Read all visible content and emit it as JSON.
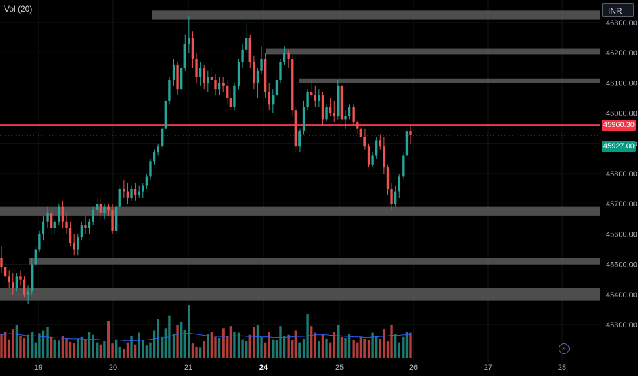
{
  "header": {
    "indicator_label": "Vol (20)"
  },
  "currency": "INR",
  "colors": {
    "up": "#26a69a",
    "down": "#ef5350",
    "zone": "#5a5a5a",
    "level": "#f23645",
    "ma": "#2962ff"
  },
  "price_tags": {
    "level": {
      "label": "45960.30",
      "value": 45960.3
    },
    "last": {
      "label": "45927.00",
      "value": 45927.0
    }
  },
  "goto_icon": "arrow-right-circle-icon",
  "chart_data": {
    "type": "candlestick",
    "y_range": [
      45210,
      46330
    ],
    "y_ticks": [
      "45300.00",
      "45400.00",
      "45500.00",
      "45600.00",
      "45700.00",
      "45800.00",
      "45900.00",
      "46000.00",
      "46100.00",
      "46200.00",
      "46300.00"
    ],
    "x_ticks": [
      {
        "label": "19",
        "bold": false
      },
      {
        "label": "20",
        "bold": false
      },
      {
        "label": "21",
        "bold": false
      },
      {
        "label": "24",
        "bold": true
      },
      {
        "label": "25",
        "bold": false
      },
      {
        "label": "26",
        "bold": false
      },
      {
        "label": "27",
        "bold": false
      },
      {
        "label": "28",
        "bold": false
      }
    ],
    "zones": [
      {
        "from": "20.5",
        "low": 46310,
        "high": 46340
      },
      {
        "from": "21.2",
        "low": 46195,
        "high": 46215
      },
      {
        "from": "24.5",
        "low": 46100,
        "high": 46115
      },
      {
        "from": "start",
        "low": 45660,
        "high": 45690
      },
      {
        "from": "18.9",
        "low": 45500,
        "high": 45520
      },
      {
        "from": "start",
        "low": 45380,
        "high": 45420
      }
    ],
    "horizontal_level": {
      "value": 45960.3,
      "from": "25.0"
    },
    "last_price": 45927.0,
    "candles": [
      [
        45520,
        45560,
        45470,
        45490
      ],
      [
        45490,
        45510,
        45440,
        45460
      ],
      [
        45460,
        45480,
        45420,
        45440
      ],
      [
        45440,
        45470,
        45400,
        45420
      ],
      [
        45420,
        45470,
        45410,
        45460
      ],
      [
        45460,
        45480,
        45430,
        45450
      ],
      [
        45450,
        45460,
        45390,
        45400
      ],
      [
        45400,
        45430,
        45370,
        45410
      ],
      [
        45410,
        45520,
        45400,
        45500
      ],
      [
        45500,
        45560,
        45490,
        45550
      ],
      [
        45550,
        45610,
        45540,
        45600
      ],
      [
        45600,
        45660,
        45580,
        45640
      ],
      [
        45640,
        45690,
        45620,
        45670
      ],
      [
        45670,
        45680,
        45600,
        45620
      ],
      [
        45620,
        45650,
        45600,
        45640
      ],
      [
        45640,
        45700,
        45630,
        45690
      ],
      [
        45690,
        45710,
        45620,
        45640
      ],
      [
        45640,
        45670,
        45600,
        45620
      ],
      [
        45620,
        45640,
        45560,
        45570
      ],
      [
        45570,
        45600,
        45530,
        45550
      ],
      [
        45550,
        45600,
        45530,
        45590
      ],
      [
        45590,
        45640,
        45580,
        45630
      ],
      [
        45630,
        45660,
        45600,
        45620
      ],
      [
        45620,
        45650,
        45600,
        45640
      ],
      [
        45640,
        45690,
        45630,
        45680
      ],
      [
        45680,
        45720,
        45660,
        45700
      ],
      [
        45700,
        45720,
        45650,
        45670
      ],
      [
        45670,
        45700,
        45650,
        45690
      ],
      [
        45690,
        45700,
        45660,
        45680
      ],
      [
        45680,
        45700,
        45600,
        45610
      ],
      [
        45610,
        45700,
        45600,
        45690
      ],
      [
        45690,
        45760,
        45680,
        45750
      ],
      [
        45750,
        45780,
        45720,
        45740
      ],
      [
        45740,
        45770,
        45700,
        45720
      ],
      [
        45720,
        45760,
        45710,
        45750
      ],
      [
        45750,
        45770,
        45710,
        45730
      ],
      [
        45730,
        45760,
        45720,
        45740
      ],
      [
        45740,
        45770,
        45720,
        45760
      ],
      [
        45760,
        45800,
        45750,
        45790
      ],
      [
        45790,
        45850,
        45780,
        45840
      ],
      [
        45840,
        45880,
        45830,
        45870
      ],
      [
        45870,
        45900,
        45860,
        45890
      ],
      [
        45890,
        45960,
        45880,
        45950
      ],
      [
        45950,
        46050,
        45940,
        46040
      ],
      [
        46040,
        46120,
        46030,
        46110
      ],
      [
        46110,
        46180,
        46090,
        46160
      ],
      [
        46160,
        46170,
        46060,
        46080
      ],
      [
        46080,
        46160,
        46070,
        46150
      ],
      [
        46150,
        46260,
        46140,
        46230
      ],
      [
        46230,
        46320,
        46200,
        46250
      ],
      [
        46250,
        46270,
        46150,
        46180
      ],
      [
        46180,
        46200,
        46100,
        46120
      ],
      [
        46120,
        46170,
        46090,
        46150
      ],
      [
        46150,
        46160,
        46080,
        46100
      ],
      [
        46100,
        46140,
        46070,
        46120
      ],
      [
        46120,
        46150,
        46090,
        46110
      ],
      [
        46110,
        46130,
        46060,
        46080
      ],
      [
        46080,
        46120,
        46060,
        46100
      ],
      [
        46100,
        46120,
        46070,
        46090
      ],
      [
        46090,
        46110,
        46030,
        46050
      ],
      [
        46050,
        46080,
        46010,
        46020
      ],
      [
        46020,
        46100,
        46010,
        46090
      ],
      [
        46090,
        46180,
        46080,
        46170
      ],
      [
        46170,
        46230,
        46150,
        46210
      ],
      [
        46210,
        46300,
        46200,
        46250
      ],
      [
        46250,
        46260,
        46150,
        46170
      ],
      [
        46170,
        46190,
        46080,
        46100
      ],
      [
        46100,
        46150,
        46050,
        46140
      ],
      [
        46140,
        46220,
        46130,
        46180
      ],
      [
        46180,
        46200,
        46050,
        46070
      ],
      [
        46070,
        46100,
        46010,
        46030
      ],
      [
        46030,
        46080,
        46000,
        46060
      ],
      [
        46060,
        46120,
        46050,
        46110
      ],
      [
        46110,
        46180,
        46100,
        46170
      ],
      [
        46170,
        46220,
        46160,
        46200
      ],
      [
        46200,
        46210,
        46150,
        46180
      ],
      [
        46180,
        46190,
        45990,
        46010
      ],
      [
        46010,
        46020,
        45870,
        45890
      ],
      [
        45890,
        45950,
        45870,
        45940
      ],
      [
        45940,
        46040,
        45930,
        46020
      ],
      [
        46020,
        46080,
        46010,
        46070
      ],
      [
        46070,
        46110,
        46050,
        46060
      ],
      [
        46060,
        46090,
        46020,
        46040
      ],
      [
        46040,
        46080,
        46020,
        46060
      ],
      [
        46060,
        46070,
        45960,
        45980
      ],
      [
        45980,
        46030,
        45970,
        46020
      ],
      [
        46020,
        46050,
        45990,
        46000
      ],
      [
        46000,
        46040,
        45970,
        45990
      ],
      [
        45990,
        46110,
        45980,
        46090
      ],
      [
        46090,
        46100,
        45960,
        45980
      ],
      [
        45980,
        46010,
        45950,
        45990
      ],
      [
        45990,
        46030,
        45980,
        46020
      ],
      [
        46020,
        46030,
        45960,
        45970
      ],
      [
        45970,
        45980,
        45930,
        45950
      ],
      [
        45950,
        45970,
        45910,
        45920
      ],
      [
        45920,
        45950,
        45880,
        45890
      ],
      [
        45890,
        45900,
        45820,
        45830
      ],
      [
        45830,
        45870,
        45820,
        45860
      ],
      [
        45860,
        45920,
        45850,
        45910
      ],
      [
        45910,
        45930,
        45880,
        45890
      ],
      [
        45890,
        45920,
        45800,
        45820
      ],
      [
        45820,
        45830,
        45730,
        45750
      ],
      [
        45750,
        45770,
        45680,
        45700
      ],
      [
        45700,
        45760,
        45690,
        45740
      ],
      [
        45740,
        45800,
        45720,
        45790
      ],
      [
        45790,
        45870,
        45780,
        45860
      ],
      [
        45860,
        45950,
        45850,
        45940
      ],
      [
        45940,
        45960,
        45900,
        45927
      ]
    ],
    "volumes": [
      0.45,
      0.5,
      0.35,
      0.55,
      0.62,
      0.42,
      0.38,
      0.44,
      0.5,
      0.3,
      0.47,
      0.52,
      0.58,
      0.4,
      0.35,
      0.33,
      0.42,
      0.38,
      0.31,
      0.29,
      0.36,
      0.4,
      0.34,
      0.5,
      0.44,
      0.3,
      0.26,
      0.32,
      0.7,
      0.28,
      0.35,
      0.22,
      0.18,
      0.3,
      0.42,
      0.26,
      0.48,
      0.34,
      0.24,
      0.3,
      0.52,
      0.74,
      0.4,
      0.56,
      0.8,
      0.46,
      0.62,
      0.68,
      0.54,
      1.0,
      0.28,
      0.22,
      0.2,
      0.32,
      0.45,
      0.5,
      0.4,
      0.38,
      0.56,
      0.42,
      0.6,
      0.5,
      0.48,
      0.35,
      0.32,
      0.44,
      0.58,
      0.62,
      0.4,
      0.3,
      0.5,
      0.35,
      0.34,
      0.6,
      0.42,
      0.44,
      0.34,
      0.52,
      0.3,
      0.36,
      0.82,
      0.6,
      0.48,
      0.32,
      0.45,
      0.36,
      0.3,
      0.5,
      0.62,
      0.4,
      0.38,
      0.46,
      0.34,
      0.3,
      0.4,
      0.36,
      0.34,
      0.48,
      0.42,
      0.36,
      0.55,
      0.32,
      0.62,
      0.45,
      0.3,
      0.4,
      0.5,
      0.48
    ],
    "volume_ma": [
      0.44,
      0.45,
      0.46,
      0.46,
      0.45,
      0.44,
      0.43,
      0.42,
      0.42,
      0.42,
      0.41,
      0.4,
      0.4,
      0.39,
      0.38,
      0.38,
      0.37,
      0.37,
      0.36,
      0.36,
      0.36,
      0.36,
      0.35,
      0.35,
      0.35,
      0.35,
      0.34,
      0.34,
      0.34,
      0.34,
      0.34,
      0.34,
      0.33,
      0.33,
      0.33,
      0.33,
      0.33,
      0.34,
      0.34,
      0.35,
      0.36,
      0.37,
      0.38,
      0.39,
      0.41,
      0.43,
      0.45,
      0.46,
      0.46,
      0.47,
      0.46,
      0.45,
      0.44,
      0.43,
      0.42,
      0.42,
      0.41,
      0.41,
      0.41,
      0.41,
      0.42,
      0.42,
      0.42,
      0.42,
      0.41,
      0.41,
      0.41,
      0.4,
      0.4,
      0.4,
      0.4,
      0.39,
      0.39,
      0.39,
      0.39,
      0.4,
      0.4,
      0.41,
      0.41,
      0.41,
      0.42,
      0.43,
      0.44,
      0.44,
      0.44,
      0.44,
      0.43,
      0.43,
      0.42,
      0.42,
      0.41,
      0.41,
      0.4,
      0.4,
      0.4,
      0.39,
      0.39,
      0.4,
      0.4,
      0.41,
      0.41,
      0.42,
      0.43,
      0.43,
      0.43,
      0.44,
      0.44,
      0.45
    ]
  }
}
